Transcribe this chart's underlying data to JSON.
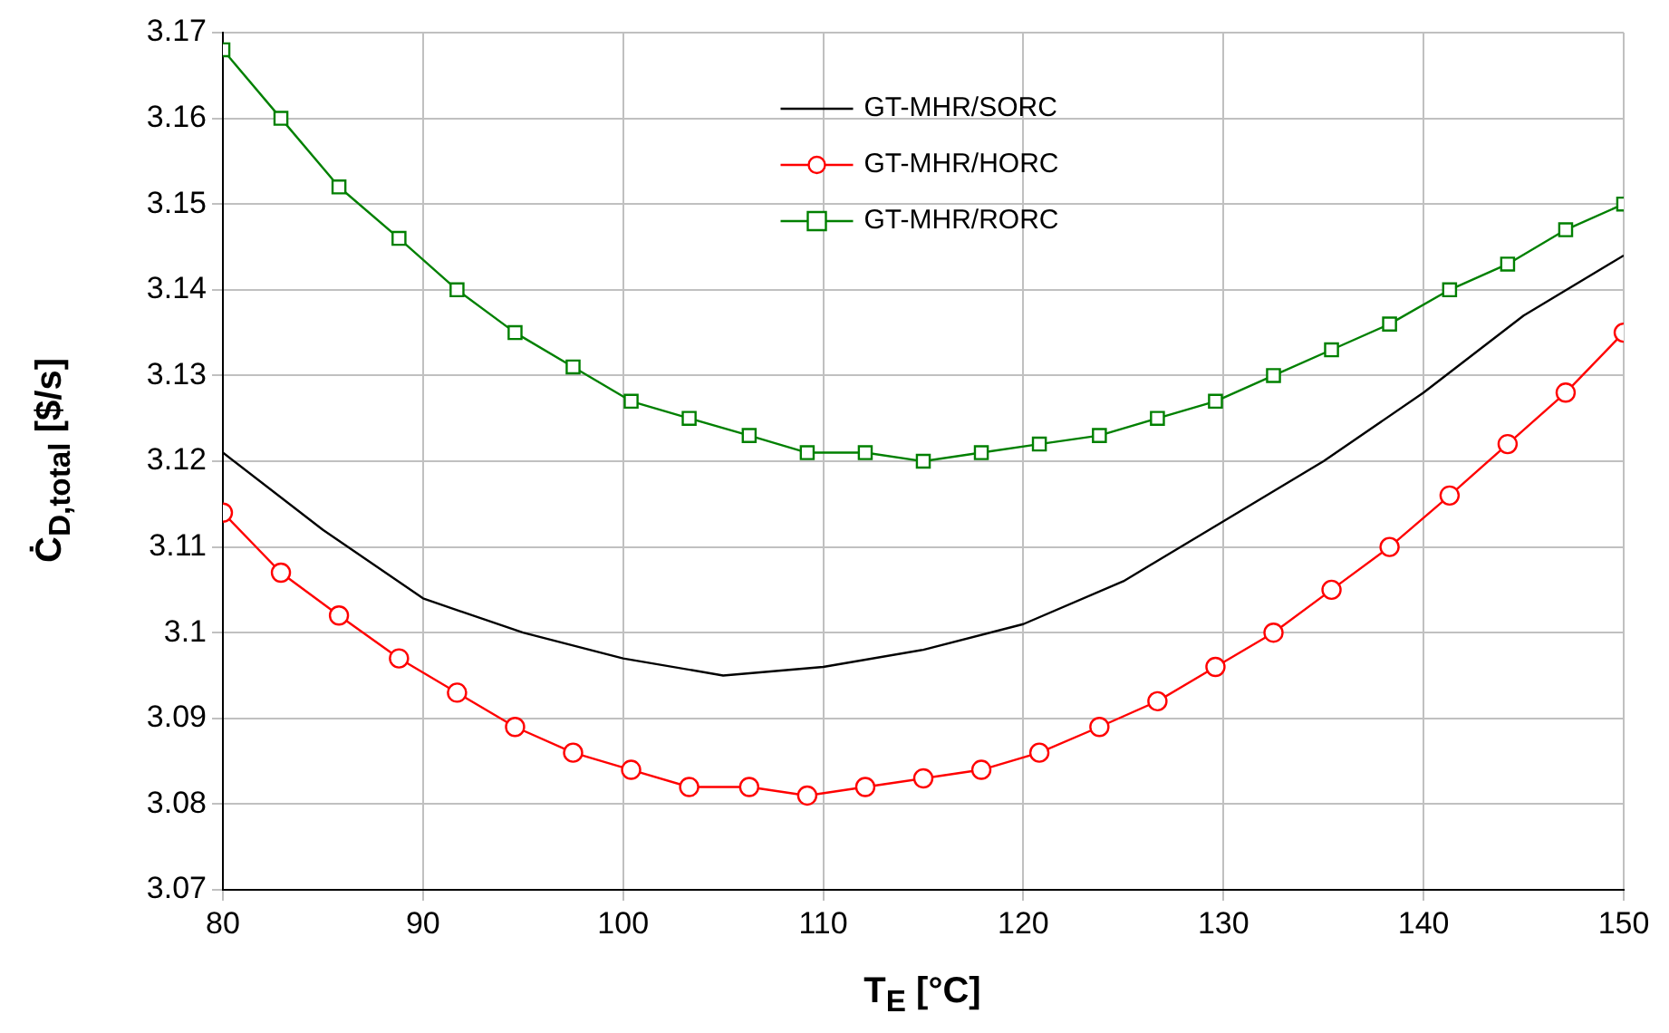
{
  "chart_data": {
    "type": "line",
    "xlabel": "T$_{E}$ [°C]",
    "ylabel": "Ċ$_{D,total}$ [$/s]",
    "xlim": [
      80,
      150
    ],
    "xticks": [
      80,
      90,
      100,
      110,
      120,
      130,
      140,
      150
    ],
    "ylim": [
      3.07,
      3.17
    ],
    "yticks": [
      3.07,
      3.08,
      3.09,
      3.1,
      3.11,
      3.12,
      3.13,
      3.14,
      3.15,
      3.16,
      3.17
    ],
    "grid": true,
    "legend": "top",
    "line_style": "solid",
    "series": [
      {
        "name": "GT-MHR/SORC",
        "color": "#000000",
        "marker": "none",
        "x": [
          80,
          85,
          90,
          95,
          100,
          105,
          110,
          115,
          120,
          125,
          130,
          135,
          140,
          145,
          150
        ],
        "values": [
          3.121,
          3.112,
          3.104,
          3.1,
          3.097,
          3.095,
          3.096,
          3.098,
          3.101,
          3.106,
          3.113,
          3.12,
          3.128,
          3.137,
          3.144
        ]
      },
      {
        "name": "GT-MHR/HORC",
        "color": "#ff0000",
        "marker": "circle",
        "x": [
          80,
          82.9,
          85.8,
          88.8,
          91.7,
          94.6,
          97.5,
          100.4,
          103.3,
          106.3,
          109.2,
          112.1,
          115,
          117.9,
          120.8,
          123.8,
          126.7,
          129.6,
          132.5,
          135.4,
          138.3,
          141.3,
          144.2,
          147.1,
          150
        ],
        "values": [
          3.114,
          3.107,
          3.102,
          3.097,
          3.093,
          3.089,
          3.086,
          3.084,
          3.082,
          3.082,
          3.081,
          3.082,
          3.083,
          3.084,
          3.086,
          3.089,
          3.092,
          3.096,
          3.1,
          3.105,
          3.11,
          3.116,
          3.122,
          3.128,
          3.135
        ]
      },
      {
        "name": "GT-MHR/RORC",
        "color": "#008000",
        "marker": "square",
        "x": [
          80,
          82.9,
          85.8,
          88.8,
          91.7,
          94.6,
          97.5,
          100.4,
          103.3,
          106.3,
          109.2,
          112.1,
          115,
          117.9,
          120.8,
          123.8,
          126.7,
          129.6,
          132.5,
          135.4,
          138.3,
          141.3,
          144.2,
          147.1,
          150
        ],
        "values": [
          3.168,
          3.16,
          3.152,
          3.146,
          3.14,
          3.135,
          3.131,
          3.127,
          3.125,
          3.123,
          3.121,
          3.121,
          3.12,
          3.121,
          3.122,
          3.123,
          3.125,
          3.127,
          3.13,
          3.133,
          3.136,
          3.14,
          3.143,
          3.147,
          3.15
        ]
      }
    ]
  }
}
